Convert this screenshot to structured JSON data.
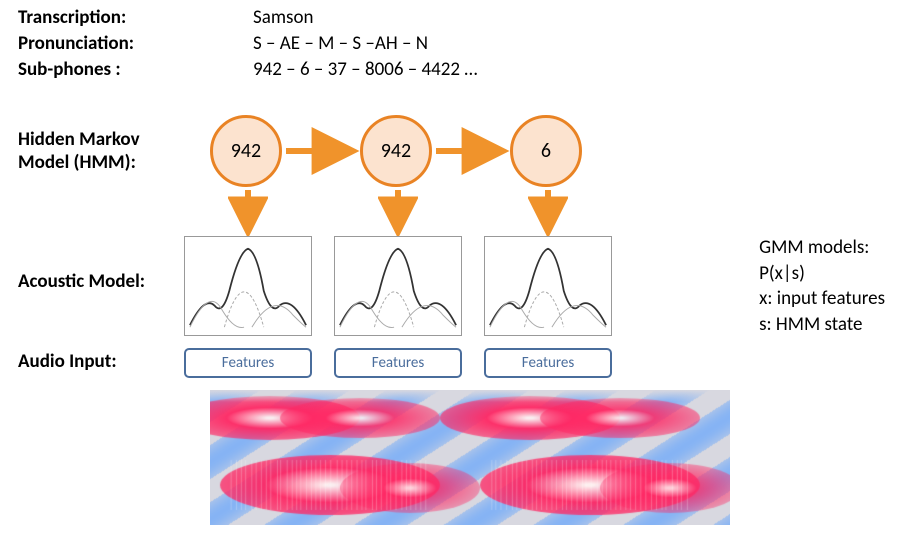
{
  "labels": {
    "transcription": "Transcription:",
    "pronunciation": "Pronunciation:",
    "subphones": "Sub-phones :",
    "hmm": "Hidden Markov\nModel (HMM):",
    "acoustic": "Acoustic Model:",
    "audio": "Audio Input:"
  },
  "values": {
    "transcription": "Samson",
    "pronunciation": "S – AE – M – S –AH – N",
    "subphones": "942 – 6 – 37 – 8006 – 4422 …"
  },
  "hmm": {
    "states": [
      "942",
      "942",
      "6"
    ],
    "circle_fill": "#fce3cf",
    "circle_stroke": "#e98324",
    "arrow_color": "#f0932b"
  },
  "gmm": {
    "boxes": 3,
    "border": "#999999",
    "curve_color": "#555555"
  },
  "features": {
    "label": "Features",
    "count": 3,
    "border": "#4a6d9c",
    "text_color": "#4a6d9c"
  },
  "side": {
    "l1": "GMM models:",
    "l2": "P(x|s)",
    "l3": "x: input features",
    "l4": "s: HMM state"
  },
  "spectrogram": {
    "bg": "#d8d8e0",
    "low": "#5aa0ff",
    "mid": "#ff2a6a",
    "high": "#ffffff"
  }
}
